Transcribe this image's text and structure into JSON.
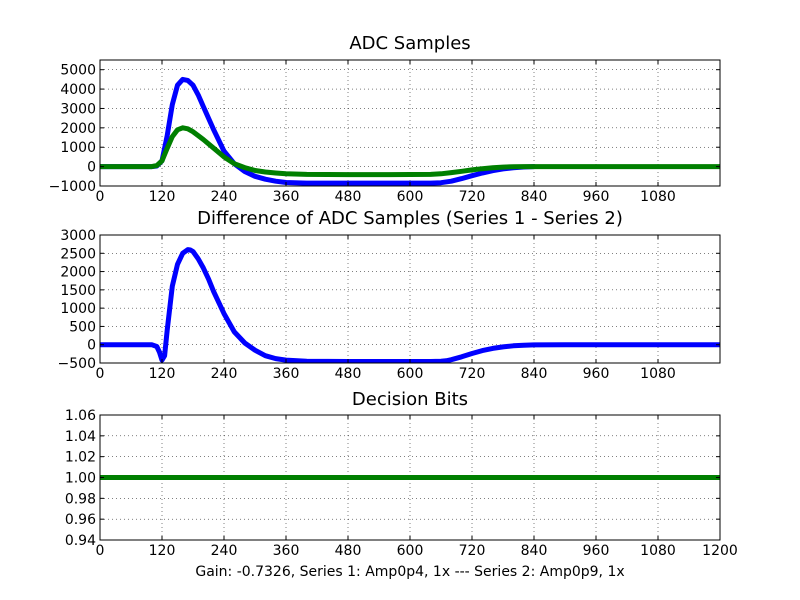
{
  "figure": {
    "xlabel": "Gain: -0.7326, Series 1: Amp0p4, 1x --- Series 2: Amp0p9, 1x"
  },
  "chart_data": [
    {
      "type": "line",
      "title": "ADC Samples",
      "xlim": [
        0,
        1200
      ],
      "ylim": [
        -1000,
        5500
      ],
      "xticks": [
        0,
        120,
        240,
        360,
        480,
        600,
        720,
        840,
        960,
        1080
      ],
      "yticks": [
        -1000,
        0,
        1000,
        2000,
        3000,
        4000,
        5000
      ],
      "grid": true,
      "series": [
        {
          "name": "Series 1",
          "color": "#0000ff",
          "x": [
            0,
            60,
            100,
            110,
            120,
            130,
            140,
            150,
            160,
            170,
            180,
            190,
            200,
            220,
            240,
            260,
            280,
            300,
            320,
            340,
            360,
            400,
            480,
            560,
            640,
            660,
            680,
            700,
            720,
            740,
            760,
            780,
            800,
            820,
            840
          ],
          "y": [
            0,
            0,
            0,
            30,
            300,
            1600,
            3200,
            4200,
            4500,
            4450,
            4200,
            3700,
            3100,
            1900,
            800,
            150,
            -250,
            -500,
            -650,
            -750,
            -820,
            -850,
            -850,
            -850,
            -850,
            -830,
            -750,
            -620,
            -470,
            -330,
            -210,
            -120,
            -60,
            -20,
            0
          ]
        },
        {
          "name": "Series 2",
          "color": "#007f00",
          "x": [
            0,
            60,
            100,
            110,
            120,
            130,
            140,
            150,
            160,
            170,
            180,
            190,
            200,
            220,
            240,
            260,
            280,
            300,
            320,
            340,
            360,
            400,
            480,
            560,
            640,
            660,
            680,
            700,
            720,
            740,
            760,
            780,
            800,
            820,
            840,
            900,
            960,
            1020,
            1080,
            1200
          ],
          "y": [
            0,
            0,
            0,
            50,
            300,
            950,
            1550,
            1900,
            2000,
            1950,
            1800,
            1600,
            1400,
            950,
            500,
            150,
            -50,
            -200,
            -280,
            -330,
            -370,
            -400,
            -410,
            -410,
            -400,
            -370,
            -310,
            -240,
            -170,
            -110,
            -60,
            -25,
            -5,
            0,
            0,
            0,
            0,
            0,
            0,
            0
          ]
        }
      ]
    },
    {
      "type": "line",
      "title": "Difference of ADC Samples (Series 1 - Series 2)",
      "xlim": [
        0,
        1200
      ],
      "ylim": [
        -500,
        3000
      ],
      "xticks": [
        0,
        120,
        240,
        360,
        480,
        600,
        720,
        840,
        960,
        1080
      ],
      "yticks": [
        -500,
        0,
        500,
        1000,
        1500,
        2000,
        2500,
        3000
      ],
      "grid": true,
      "series": [
        {
          "name": "Difference",
          "color": "#0000ff",
          "x": [
            0,
            60,
            100,
            110,
            115,
            120,
            125,
            130,
            140,
            150,
            160,
            170,
            175,
            180,
            190,
            200,
            210,
            220,
            240,
            260,
            280,
            300,
            320,
            340,
            360,
            400,
            480,
            560,
            640,
            660,
            670,
            680,
            700,
            720,
            740,
            760,
            780,
            800,
            820,
            840,
            900,
            960,
            1020,
            1080,
            1200
          ],
          "y": [
            0,
            0,
            0,
            -50,
            -200,
            -420,
            -300,
            400,
            1600,
            2200,
            2500,
            2600,
            2590,
            2550,
            2350,
            2100,
            1800,
            1450,
            850,
            350,
            50,
            -150,
            -300,
            -380,
            -420,
            -450,
            -460,
            -460,
            -460,
            -450,
            -440,
            -410,
            -330,
            -240,
            -160,
            -100,
            -60,
            -30,
            -12,
            -5,
            0,
            0,
            0,
            0,
            0
          ]
        }
      ]
    },
    {
      "type": "line",
      "title": "Decision Bits",
      "xlim": [
        0,
        1200
      ],
      "ylim": [
        0.94,
        1.06
      ],
      "xticks": [
        0,
        120,
        240,
        360,
        480,
        600,
        720,
        840,
        960,
        1080,
        1200
      ],
      "yticks": [
        0.94,
        0.96,
        0.98,
        1.0,
        1.02,
        1.04,
        1.06
      ],
      "ytick_decimals": 2,
      "grid": true,
      "series": [
        {
          "name": "Decision",
          "color": "#007f00",
          "x": [
            0,
            1200
          ],
          "y": [
            1.0,
            1.0
          ]
        }
      ]
    }
  ]
}
